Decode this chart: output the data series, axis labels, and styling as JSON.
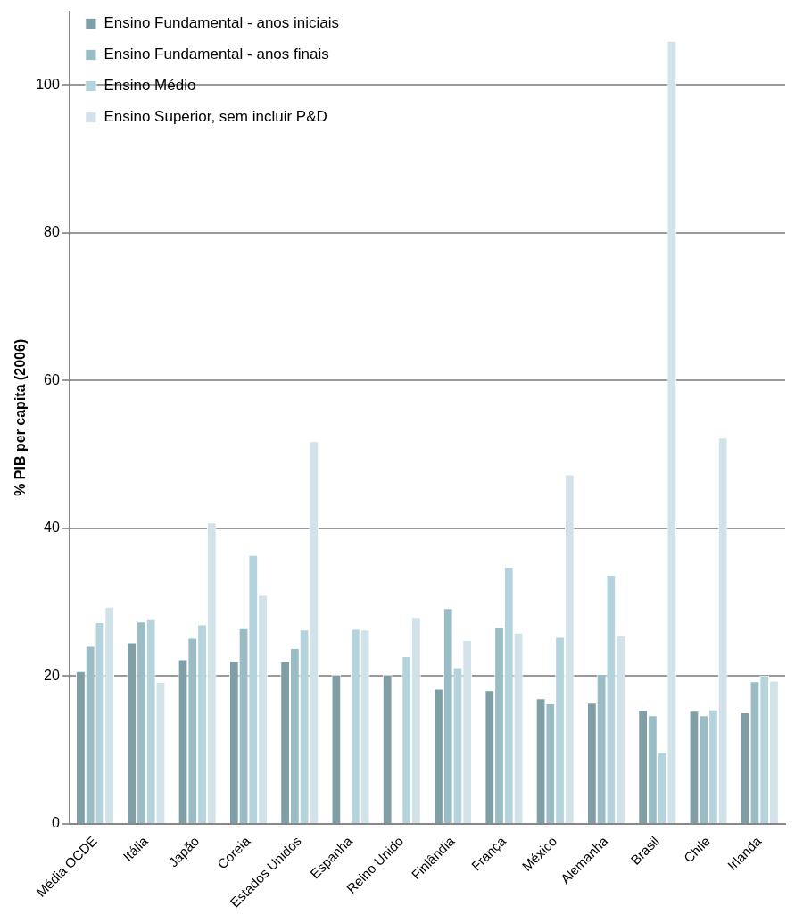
{
  "chart_data": {
    "type": "bar",
    "ylabel": "% PIB per capita (2006)",
    "categories": [
      "Média OCDE",
      "Itália",
      "Japão",
      "Coreia",
      "Estados Unidos",
      "Espanha",
      "Reino Unido",
      "Finlândia",
      "França",
      "México",
      "Alemanha",
      "Brasil",
      "Chile",
      "Irlanda"
    ],
    "series": [
      {
        "name": "Ensino Fundamental - anos iniciais",
        "color": "#7f9ea5",
        "values": [
          20.7,
          24.6,
          22.3,
          22.0,
          22.0,
          20.2,
          20.2,
          18.3,
          18.1,
          17.0,
          16.4,
          15.4,
          15.3,
          15.1
        ]
      },
      {
        "name": "Ensino Fundamental - anos finais",
        "color": "#99bcc5",
        "values": [
          24.1,
          27.4,
          25.2,
          26.5,
          23.8,
          null,
          null,
          29.2,
          26.6,
          16.3,
          20.3,
          14.7,
          14.7,
          19.3
        ]
      },
      {
        "name": "Ensino Médio",
        "color": "#b5d3dc",
        "values": [
          27.3,
          27.7,
          27.0,
          36.4,
          26.3,
          26.4,
          22.7,
          21.2,
          34.8,
          25.3,
          33.7,
          9.7,
          15.5,
          20.1
        ]
      },
      {
        "name": "Ensino Superior, sem incluir P&D",
        "color": "#d1e2e8",
        "values": [
          29.4,
          19.2,
          40.8,
          31.0,
          51.8,
          26.3,
          28.0,
          24.9,
          25.9,
          47.3,
          25.5,
          106.0,
          52.3,
          19.4
        ]
      }
    ],
    "ylim": [
      0,
      110
    ],
    "yticks": [
      0,
      20,
      40,
      60,
      80,
      100
    ],
    "grid": "y",
    "legend": "top left"
  }
}
